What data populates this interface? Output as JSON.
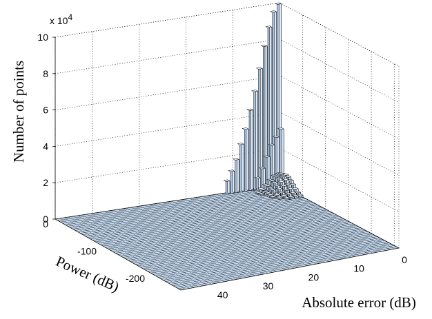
{
  "chart_data": {
    "type": "bar3d",
    "title": "",
    "zlabel": "Number of points",
    "ylabel": "Power (dB)",
    "xlabel": "Absolute error (dB)",
    "z_exponent_label": "x 10",
    "z_exponent_power": "4",
    "x_range": [
      0,
      48
    ],
    "y_range": [
      -260,
      0
    ],
    "z_range": [
      0,
      100000
    ],
    "x_ticks": [
      0,
      10,
      20,
      30,
      40
    ],
    "x_tick_labels": [
      "0",
      "10",
      "20",
      "30",
      "40"
    ],
    "y_ticks": [
      0,
      -100,
      -200
    ],
    "y_tick_labels": [
      "0",
      "-100",
      "-200"
    ],
    "z_ticks": [
      0,
      20000,
      40000,
      60000,
      80000,
      100000
    ],
    "z_tick_labels": [
      "0",
      "2",
      "4",
      "6",
      "8",
      "10"
    ],
    "grid": true,
    "bar_color": "#c6daf0",
    "edge_color": "#000000",
    "bins_x": 50,
    "bins_y": 50,
    "peak_ridge": [
      {
        "abs_error_db": 0.5,
        "power_db": -2,
        "count": 100000
      },
      {
        "abs_error_db": 1.5,
        "power_db": -2,
        "count": 96000
      },
      {
        "abs_error_db": 2.5,
        "power_db": -2,
        "count": 88000
      },
      {
        "abs_error_db": 3.5,
        "power_db": -2,
        "count": 78000
      },
      {
        "abs_error_db": 4.5,
        "power_db": -2,
        "count": 66000
      },
      {
        "abs_error_db": 5.5,
        "power_db": -2,
        "count": 54000
      },
      {
        "abs_error_db": 6.5,
        "power_db": -2,
        "count": 44000
      },
      {
        "abs_error_db": 7.5,
        "power_db": -2,
        "count": 34000
      },
      {
        "abs_error_db": 8.5,
        "power_db": -2,
        "count": 26000
      },
      {
        "abs_error_db": 9.5,
        "power_db": -2,
        "count": 18000
      },
      {
        "abs_error_db": 10.5,
        "power_db": -2,
        "count": 12000
      },
      {
        "abs_error_db": 11.5,
        "power_db": -2,
        "count": 7000
      }
    ],
    "secondary_ridge": [
      {
        "abs_error_db": 0.5,
        "power_db": -8,
        "count": 32000
      },
      {
        "abs_error_db": 1.5,
        "power_db": -8,
        "count": 28000
      },
      {
        "abs_error_db": 2.5,
        "power_db": -8,
        "count": 24000
      },
      {
        "abs_error_db": 3.5,
        "power_db": -8,
        "count": 18000
      },
      {
        "abs_error_db": 4.5,
        "power_db": -8,
        "count": 12000
      },
      {
        "abs_error_db": 5.5,
        "power_db": -8,
        "count": 7000
      }
    ]
  }
}
